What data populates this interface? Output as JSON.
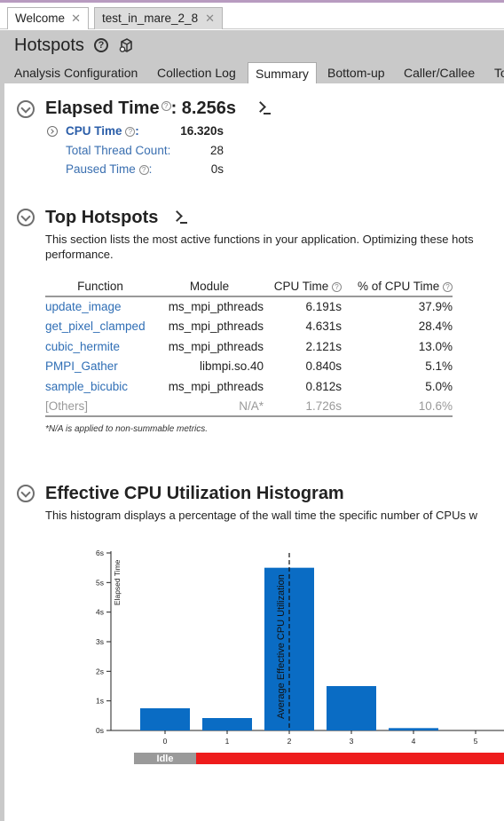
{
  "doc_tabs": [
    {
      "label": "Welcome"
    },
    {
      "label": "test_in_mare_2_8"
    }
  ],
  "header": {
    "title": "Hotspots"
  },
  "view_tabs": [
    "Analysis Configuration",
    "Collection Log",
    "Summary",
    "Bottom-up",
    "Caller/Callee",
    "To"
  ],
  "active_view_tab": "Summary",
  "elapsed": {
    "title": "Elapsed Time",
    "value": ": 8.256s",
    "metrics": [
      {
        "label": "CPU Time",
        "suffix": ":",
        "value": "16.320s"
      },
      {
        "label": "Total Thread Count:",
        "value": "28"
      },
      {
        "label": "Paused Time",
        "suffix": ":",
        "value": "0s"
      }
    ]
  },
  "top_hotspots": {
    "title": "Top Hotspots",
    "description_line1": "This section lists the most active functions in your application. Optimizing these hots",
    "description_line2": "performance.",
    "columns": [
      "Function",
      "Module",
      "CPU Time",
      "% of CPU Time"
    ],
    "rows": [
      {
        "function": "update_image",
        "module": "ms_mpi_pthreads",
        "cpu_time": "6.191s",
        "pct": "37.9%"
      },
      {
        "function": "get_pixel_clamped",
        "module": "ms_mpi_pthreads",
        "cpu_time": "4.631s",
        "pct": "28.4%"
      },
      {
        "function": "cubic_hermite",
        "module": "ms_mpi_pthreads",
        "cpu_time": "2.121s",
        "pct": "13.0%"
      },
      {
        "function": "PMPI_Gather",
        "module": "libmpi.so.40",
        "cpu_time": "0.840s",
        "pct": "5.1%"
      },
      {
        "function": "sample_bicubic",
        "module": "ms_mpi_pthreads",
        "cpu_time": "0.812s",
        "pct": "5.0%"
      }
    ],
    "others": {
      "function": "[Others]",
      "module": "N/A*",
      "cpu_time": "1.726s",
      "pct": "10.6%"
    },
    "footnote": "*N/A is applied to non-summable metrics."
  },
  "histogram": {
    "title": "Effective CPU Utilization Histogram",
    "description": "This histogram displays a percentage of the wall time the specific number of CPUs w"
  },
  "chart_data": {
    "type": "bar",
    "categories": [
      "0",
      "1",
      "2",
      "3",
      "4",
      "5"
    ],
    "values": [
      0.75,
      0.42,
      5.5,
      1.5,
      0.08,
      0
    ],
    "ylabel": "Elapsed Time",
    "ylim": [
      0,
      6
    ],
    "y_ticks": [
      "0s",
      "1s",
      "2s",
      "3s",
      "4s",
      "5s",
      "6s"
    ],
    "average_marker": {
      "x": 2.0,
      "label": "Average Effective CPU Utilization"
    },
    "utilization_bands": [
      {
        "label": "Idle",
        "from": -0.5,
        "to": 0.5,
        "color": "#9a9a9a"
      },
      {
        "label": "",
        "from": 0.5,
        "to": 5.6,
        "color": "#ee1c1c"
      }
    ],
    "bar_color": "#0a6cc4"
  }
}
